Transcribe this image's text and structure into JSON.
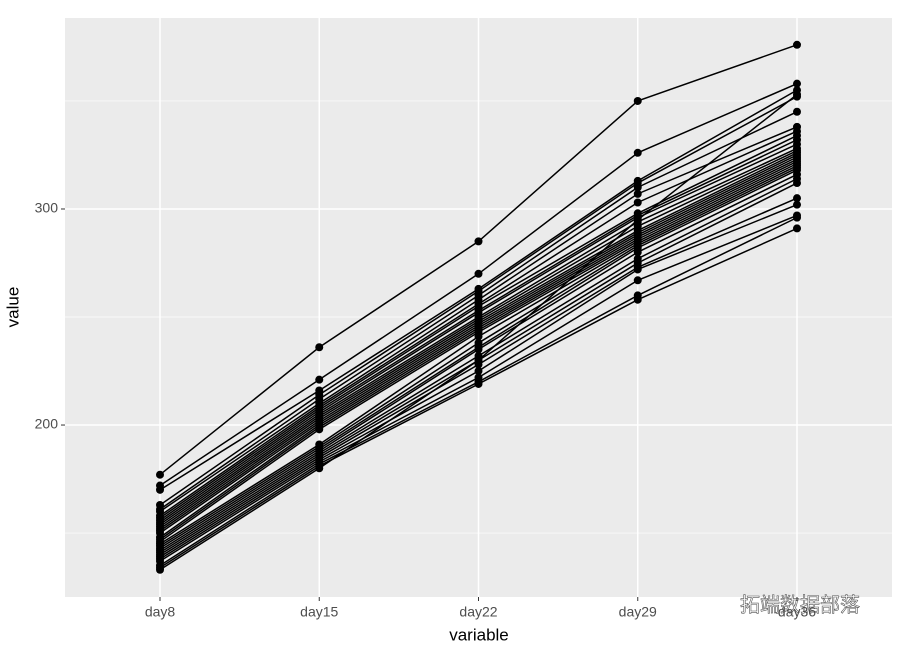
{
  "chart_data": {
    "type": "line",
    "x_label": "variable",
    "y_label": "value",
    "categories": [
      "day8",
      "day15",
      "day22",
      "day29",
      "day36"
    ],
    "ylim": [
      120.4,
      388.4
    ],
    "yticks": [
      200,
      300
    ],
    "minor_yticks": [
      150,
      250,
      350
    ],
    "grid": true,
    "color": "#000000",
    "series": [
      {
        "values": [
          177,
          236,
          285,
          350,
          376
        ]
      },
      {
        "values": [
          172,
          221,
          270,
          326,
          358
        ]
      },
      {
        "values": [
          170,
          216,
          263,
          313,
          355
        ]
      },
      {
        "values": [
          163,
          214,
          262,
          312,
          352
        ]
      },
      {
        "values": [
          161,
          212,
          260,
          310,
          345
        ]
      },
      {
        "values": [
          160,
          210,
          258,
          307,
          338
        ]
      },
      {
        "values": [
          158,
          209,
          256,
          303,
          336
        ]
      },
      {
        "values": [
          157,
          208,
          255,
          298,
          334
        ]
      },
      {
        "values": [
          156,
          207,
          253,
          297,
          332
        ]
      },
      {
        "values": [
          155,
          206,
          252,
          296,
          330
        ]
      },
      {
        "values": [
          154,
          205,
          250,
          294,
          328
        ]
      },
      {
        "values": [
          153,
          204,
          249,
          292,
          327
        ]
      },
      {
        "values": [
          152,
          203,
          248,
          290,
          326
        ]
      },
      {
        "values": [
          151,
          202,
          247,
          289,
          325
        ]
      },
      {
        "values": [
          150,
          201,
          246,
          288,
          324
        ]
      },
      {
        "values": [
          148,
          200,
          245,
          287,
          323
        ]
      },
      {
        "values": [
          147,
          199,
          244,
          286,
          322
        ]
      },
      {
        "values": [
          146,
          198,
          243,
          285,
          321
        ]
      },
      {
        "values": [
          145,
          191,
          241,
          284,
          320
        ]
      },
      {
        "values": [
          144,
          190,
          238,
          283,
          319
        ]
      },
      {
        "values": [
          143,
          189,
          236,
          282,
          318
        ]
      },
      {
        "values": [
          142,
          188,
          235,
          280,
          316
        ]
      },
      {
        "values": [
          141,
          187,
          232,
          277,
          314
        ]
      },
      {
        "values": [
          140,
          186,
          230,
          275,
          312
        ]
      },
      {
        "values": [
          139,
          185,
          228,
          273,
          305
        ]
      },
      {
        "values": [
          138,
          184,
          225,
          272,
          302
        ]
      },
      {
        "values": [
          137,
          183,
          222,
          267,
          297
        ]
      },
      {
        "values": [
          135,
          182,
          220,
          260,
          296
        ]
      },
      {
        "values": [
          134,
          181,
          219,
          258,
          291
        ]
      },
      {
        "values": [
          133,
          180,
          230,
          295,
          353
        ]
      }
    ]
  },
  "watermark": {
    "brand": "拓端数据部落",
    "url": "https://blog.csdn.net/qq_19600291"
  }
}
